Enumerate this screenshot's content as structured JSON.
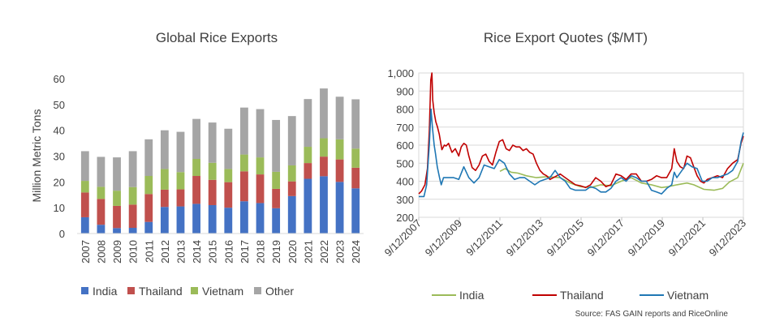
{
  "chart_data": [
    {
      "type": "bar",
      "stacked": true,
      "title": "Global Rice Exports",
      "xlabel": "",
      "ylabel": "Million Metric Tons",
      "ylim": [
        0,
        60
      ],
      "yticks": [
        "0",
        "10",
        "20",
        "30",
        "40",
        "50",
        "60"
      ],
      "grid": false,
      "legend": "bottom",
      "categories": [
        "2007",
        "2008",
        "2009",
        "2010",
        "2011",
        "2012",
        "2013",
        "2014",
        "2015",
        "2016",
        "2017",
        "2018",
        "2019",
        "2020",
        "2021",
        "2022",
        "2023",
        "2024"
      ],
      "series": [
        {
          "name": "India",
          "color": "#4472c4",
          "values": [
            6.3,
            3.4,
            2.1,
            2.2,
            4.5,
            10.3,
            10.5,
            11.5,
            11.0,
            10.0,
            12.5,
            11.8,
            9.8,
            14.5,
            21.2,
            22.2,
            20.0,
            17.5
          ]
        },
        {
          "name": "Thailand",
          "color": "#c0504d",
          "values": [
            9.6,
            10.0,
            8.6,
            9.0,
            10.8,
            6.7,
            6.6,
            10.8,
            9.8,
            9.9,
            11.6,
            11.1,
            7.5,
            5.7,
            6.1,
            7.6,
            8.7,
            8.0
          ]
        },
        {
          "name": "Vietnam",
          "color": "#9bbb59",
          "values": [
            4.5,
            4.7,
            5.9,
            6.8,
            7.0,
            8.0,
            6.7,
            6.6,
            6.6,
            5.1,
            6.5,
            6.6,
            6.6,
            6.2,
            6.3,
            7.1,
            7.8,
            7.4
          ]
        },
        {
          "name": "Other",
          "color": "#a5a5a5",
          "values": [
            11.5,
            11.6,
            12.9,
            13.9,
            14.2,
            15.0,
            15.6,
            15.5,
            15.6,
            15.6,
            18.2,
            18.7,
            20.1,
            19.1,
            18.5,
            19.3,
            16.5,
            19.1
          ]
        }
      ]
    },
    {
      "type": "line",
      "title": "Rice Export Quotes ($/MT)",
      "xlabel": "",
      "ylabel": "",
      "ylim": [
        200,
        1000
      ],
      "yticks": [
        "200",
        "300",
        "400",
        "500",
        "600",
        "700",
        "800",
        "900",
        "1,000"
      ],
      "xlim": [
        "2007-09-12",
        "2023-09-12"
      ],
      "xticks": [
        "9/12/2007",
        "9/12/2009",
        "9/12/2011",
        "9/12/2013",
        "9/12/2015",
        "9/12/2017",
        "9/12/2019",
        "9/12/2021",
        "9/12/2023"
      ],
      "grid": true,
      "legend": "bottom",
      "series": [
        {
          "name": "India",
          "color": "#9bbb59",
          "points": [
            [
              "2011-09-12",
              455
            ],
            [
              "2011-12-15",
              470
            ],
            [
              "2012-04-01",
              450
            ],
            [
              "2012-08-01",
              445
            ],
            [
              "2013-01-01",
              430
            ],
            [
              "2013-07-01",
              420
            ],
            [
              "2014-01-01",
              425
            ],
            [
              "2014-09-01",
              420
            ],
            [
              "2015-03-01",
              390
            ],
            [
              "2015-09-01",
              370
            ],
            [
              "2016-03-01",
              365
            ],
            [
              "2016-09-01",
              380
            ],
            [
              "2017-03-01",
              375
            ],
            [
              "2017-09-01",
              400
            ],
            [
              "2018-03-01",
              420
            ],
            [
              "2018-09-01",
              390
            ],
            [
              "2019-03-01",
              380
            ],
            [
              "2019-09-01",
              365
            ],
            [
              "2020-01-01",
              370
            ],
            [
              "2020-06-01",
              380
            ],
            [
              "2020-12-01",
              390
            ],
            [
              "2021-04-01",
              380
            ],
            [
              "2021-10-01",
              355
            ],
            [
              "2022-04-01",
              350
            ],
            [
              "2022-09-01",
              360
            ],
            [
              "2023-01-01",
              395
            ],
            [
              "2023-06-01",
              420
            ],
            [
              "2023-09-12",
              500
            ]
          ]
        },
        {
          "name": "Thailand",
          "color": "#c00000",
          "points": [
            [
              "2007-09-12",
              330
            ],
            [
              "2007-11-01",
              345
            ],
            [
              "2008-01-01",
              380
            ],
            [
              "2008-02-15",
              470
            ],
            [
              "2008-03-20",
              680
            ],
            [
              "2008-04-15",
              960
            ],
            [
              "2008-05-05",
              1000
            ],
            [
              "2008-05-20",
              850
            ],
            [
              "2008-06-15",
              780
            ],
            [
              "2008-07-15",
              730
            ],
            [
              "2008-08-15",
              700
            ],
            [
              "2008-09-15",
              660
            ],
            [
              "2008-11-01",
              575
            ],
            [
              "2008-12-15",
              600
            ],
            [
              "2009-01-15",
              595
            ],
            [
              "2009-03-01",
              610
            ],
            [
              "2009-05-01",
              560
            ],
            [
              "2009-07-01",
              580
            ],
            [
              "2009-09-01",
              540
            ],
            [
              "2009-10-15",
              590
            ],
            [
              "2009-12-01",
              610
            ],
            [
              "2010-01-15",
              600
            ],
            [
              "2010-03-01",
              540
            ],
            [
              "2010-05-01",
              475
            ],
            [
              "2010-07-01",
              460
            ],
            [
              "2010-09-01",
              490
            ],
            [
              "2010-11-01",
              540
            ],
            [
              "2011-01-01",
              550
            ],
            [
              "2011-03-01",
              510
            ],
            [
              "2011-05-01",
              490
            ],
            [
              "2011-07-01",
              560
            ],
            [
              "2011-09-01",
              620
            ],
            [
              "2011-11-01",
              630
            ],
            [
              "2012-01-01",
              580
            ],
            [
              "2012-03-01",
              570
            ],
            [
              "2012-05-01",
              600
            ],
            [
              "2012-07-01",
              590
            ],
            [
              "2012-09-01",
              590
            ],
            [
              "2012-11-01",
              570
            ],
            [
              "2013-01-01",
              580
            ],
            [
              "2013-03-01",
              560
            ],
            [
              "2013-05-01",
              550
            ],
            [
              "2013-07-01",
              500
            ],
            [
              "2013-09-01",
              460
            ],
            [
              "2013-11-01",
              440
            ],
            [
              "2014-01-01",
              430
            ],
            [
              "2014-03-01",
              410
            ],
            [
              "2014-06-01",
              425
            ],
            [
              "2014-09-01",
              440
            ],
            [
              "2014-12-01",
              420
            ],
            [
              "2015-03-01",
              400
            ],
            [
              "2015-06-01",
              380
            ],
            [
              "2015-09-01",
              375
            ],
            [
              "2015-12-01",
              365
            ],
            [
              "2016-03-01",
              380
            ],
            [
              "2016-06-01",
              420
            ],
            [
              "2016-09-01",
              400
            ],
            [
              "2016-12-01",
              370
            ],
            [
              "2017-03-01",
              380
            ],
            [
              "2017-06-01",
              440
            ],
            [
              "2017-09-01",
              430
            ],
            [
              "2017-12-01",
              410
            ],
            [
              "2018-03-01",
              440
            ],
            [
              "2018-06-01",
              440
            ],
            [
              "2018-09-01",
              400
            ],
            [
              "2018-12-01",
              400
            ],
            [
              "2019-03-01",
              410
            ],
            [
              "2019-06-01",
              430
            ],
            [
              "2019-09-01",
              420
            ],
            [
              "2019-12-01",
              420
            ],
            [
              "2020-03-01",
              470
            ],
            [
              "2020-04-15",
              580
            ],
            [
              "2020-06-01",
              510
            ],
            [
              "2020-08-01",
              480
            ],
            [
              "2020-10-01",
              470
            ],
            [
              "2020-12-01",
              540
            ],
            [
              "2021-02-01",
              530
            ],
            [
              "2021-04-01",
              480
            ],
            [
              "2021-06-01",
              430
            ],
            [
              "2021-08-01",
              400
            ],
            [
              "2021-10-01",
              390
            ],
            [
              "2021-12-01",
              410
            ],
            [
              "2022-03-01",
              420
            ],
            [
              "2022-06-01",
              430
            ],
            [
              "2022-09-01",
              420
            ],
            [
              "2022-12-01",
              470
            ],
            [
              "2023-03-01",
              500
            ],
            [
              "2023-06-01",
              520
            ],
            [
              "2023-08-01",
              610
            ],
            [
              "2023-09-12",
              650
            ]
          ]
        },
        {
          "name": "Vietnam",
          "color": "#1f77b4",
          "points": [
            [
              "2007-09-12",
              315
            ],
            [
              "2007-12-15",
              315
            ],
            [
              "2008-02-01",
              380
            ],
            [
              "2008-03-20",
              600
            ],
            [
              "2008-04-20",
              800
            ],
            [
              "2008-05-15",
              700
            ],
            [
              "2008-06-15",
              600
            ],
            [
              "2008-07-10",
              550
            ],
            [
              "2008-08-10",
              480
            ],
            [
              "2008-09-20",
              420
            ],
            [
              "2008-10-20",
              380
            ],
            [
              "2008-12-01",
              420
            ],
            [
              "2009-03-01",
              420
            ],
            [
              "2009-06-01",
              420
            ],
            [
              "2009-09-01",
              410
            ],
            [
              "2009-12-01",
              480
            ],
            [
              "2010-03-01",
              420
            ],
            [
              "2010-06-01",
              390
            ],
            [
              "2010-09-01",
              420
            ],
            [
              "2010-12-01",
              490
            ],
            [
              "2011-03-01",
              480
            ],
            [
              "2011-06-01",
              470
            ],
            [
              "2011-09-01",
              520
            ],
            [
              "2011-12-01",
              500
            ],
            [
              "2012-03-01",
              440
            ],
            [
              "2012-06-01",
              410
            ],
            [
              "2012-09-01",
              420
            ],
            [
              "2012-12-01",
              420
            ],
            [
              "2013-03-01",
              400
            ],
            [
              "2013-06-01",
              380
            ],
            [
              "2013-09-01",
              400
            ],
            [
              "2013-12-01",
              410
            ],
            [
              "2014-03-01",
              420
            ],
            [
              "2014-06-01",
              460
            ],
            [
              "2014-09-01",
              420
            ],
            [
              "2014-12-01",
              400
            ],
            [
              "2015-03-01",
              360
            ],
            [
              "2015-06-01",
              350
            ],
            [
              "2015-09-01",
              350
            ],
            [
              "2015-12-01",
              350
            ],
            [
              "2016-03-01",
              370
            ],
            [
              "2016-06-01",
              360
            ],
            [
              "2016-09-01",
              340
            ],
            [
              "2016-12-01",
              340
            ],
            [
              "2017-03-01",
              360
            ],
            [
              "2017-06-01",
              400
            ],
            [
              "2017-09-01",
              420
            ],
            [
              "2017-12-01",
              400
            ],
            [
              "2018-03-01",
              430
            ],
            [
              "2018-06-01",
              420
            ],
            [
              "2018-09-01",
              400
            ],
            [
              "2018-12-01",
              400
            ],
            [
              "2019-03-01",
              350
            ],
            [
              "2019-06-01",
              340
            ],
            [
              "2019-09-01",
              330
            ],
            [
              "2019-12-01",
              360
            ],
            [
              "2020-03-01",
              380
            ],
            [
              "2020-04-15",
              450
            ],
            [
              "2020-06-01",
              420
            ],
            [
              "2020-09-01",
              460
            ],
            [
              "2020-12-01",
              500
            ],
            [
              "2021-03-01",
              480
            ],
            [
              "2021-06-01",
              470
            ],
            [
              "2021-09-01",
              400
            ],
            [
              "2021-12-01",
              400
            ],
            [
              "2022-03-01",
              420
            ],
            [
              "2022-06-01",
              420
            ],
            [
              "2022-09-01",
              430
            ],
            [
              "2022-12-01",
              440
            ],
            [
              "2023-03-01",
              460
            ],
            [
              "2023-06-01",
              510
            ],
            [
              "2023-08-01",
              620
            ],
            [
              "2023-09-12",
              670
            ]
          ]
        }
      ]
    }
  ],
  "source_text": "Source: FAS GAIN reports and RiceOnline"
}
